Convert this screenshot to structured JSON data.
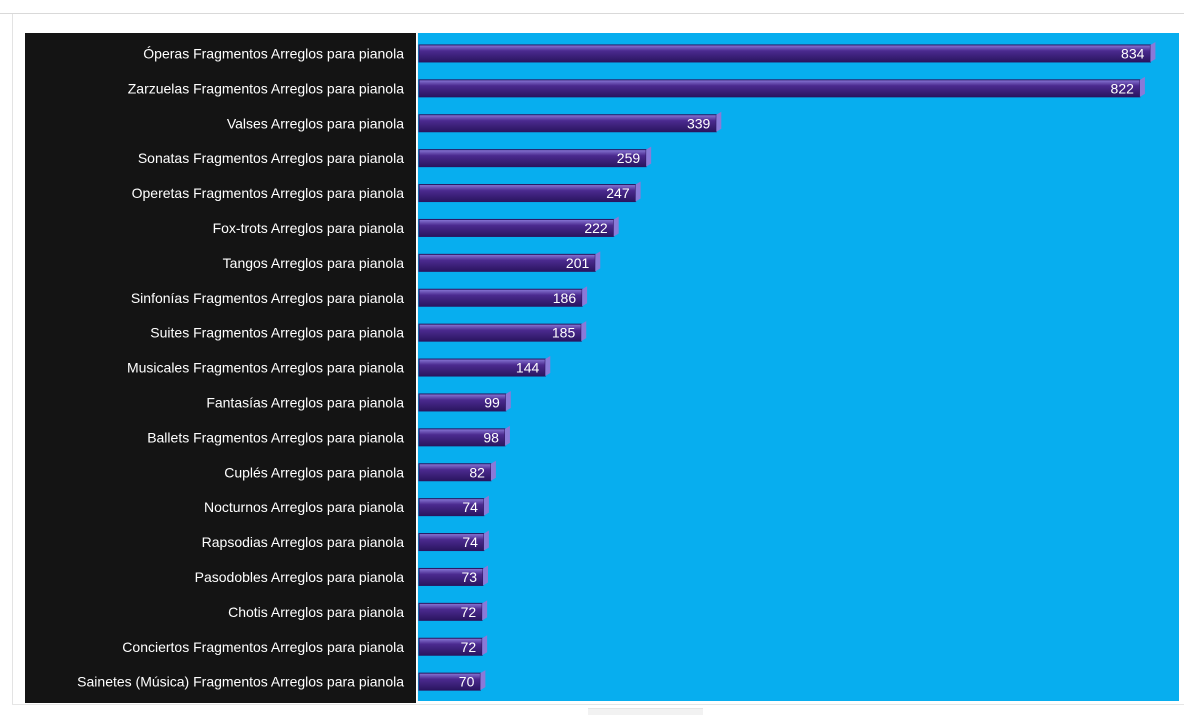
{
  "colors": {
    "label_panel": "#141414",
    "plot_background": "#07aeef",
    "bar_fill": "#4b2a8f",
    "bar_highlight": "#8a7ad8",
    "bar_shadow": "#2a1560",
    "text": "#ffffff"
  },
  "chart_data": {
    "type": "bar",
    "orientation": "horizontal",
    "title": "",
    "xlabel": "",
    "ylabel": "",
    "grid": false,
    "legend": "none",
    "xlim": [
      0,
      860
    ],
    "categories": [
      "Óperas Fragmentos Arreglos para pianola",
      "Zarzuelas Fragmentos Arreglos para pianola",
      "Valses Arreglos para pianola",
      "Sonatas Fragmentos Arreglos para pianola",
      "Operetas Fragmentos Arreglos para pianola",
      "Fox-trots Arreglos para pianola",
      "Tangos Arreglos para pianola",
      "Sinfonías Fragmentos Arreglos para pianola",
      "Suites Fragmentos Arreglos para pianola",
      "Musicales Fragmentos Arreglos para pianola",
      "Fantasías Arreglos para pianola",
      "Ballets Fragmentos Arreglos para pianola",
      "Cuplés Arreglos para pianola",
      "Nocturnos Arreglos para pianola",
      "Rapsodias Arreglos para pianola",
      "Pasodobles Arreglos para pianola",
      "Chotis Arreglos para pianola",
      "Conciertos Fragmentos Arreglos para pianola",
      "Sainetes (Música) Fragmentos Arreglos para pianola"
    ],
    "values": [
      834,
      822,
      339,
      259,
      247,
      222,
      201,
      186,
      185,
      144,
      99,
      98,
      82,
      74,
      74,
      73,
      72,
      72,
      70
    ]
  }
}
